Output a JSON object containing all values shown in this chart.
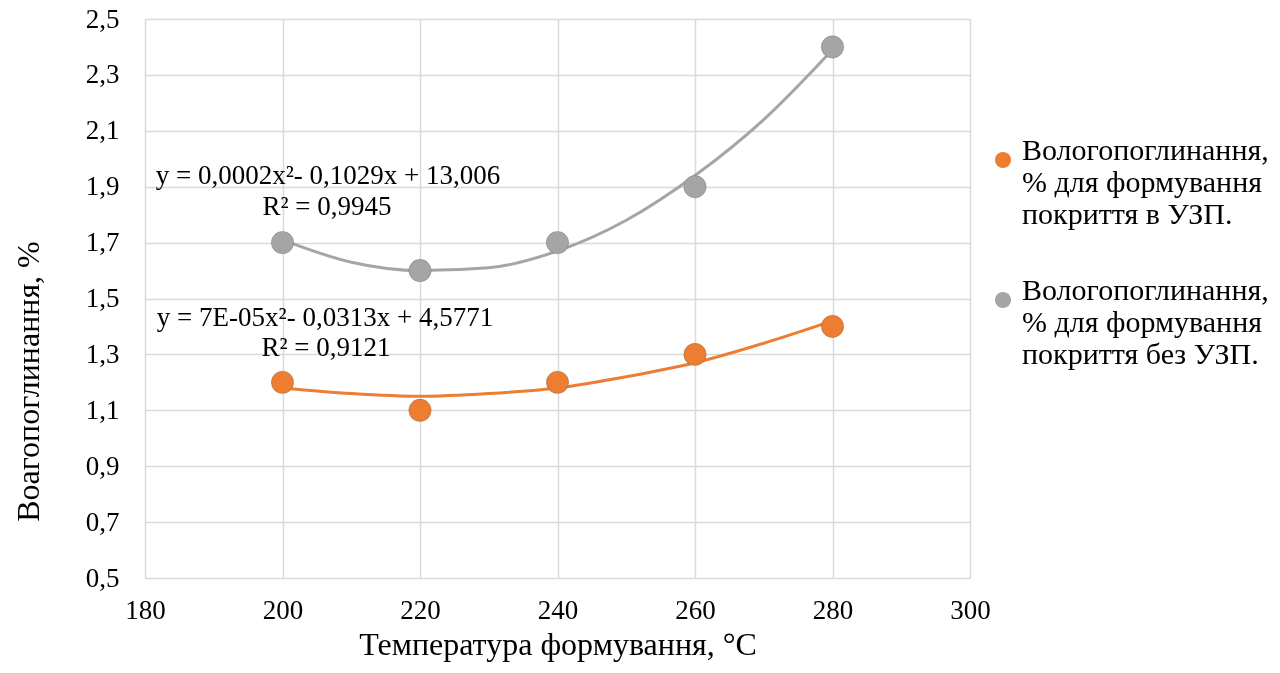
{
  "chart_data": {
    "type": "scatter",
    "xlabel": "Температура формування, °C",
    "ylabel": "Воагопоглинання, %",
    "xlim": [
      180,
      300
    ],
    "xticks": [
      180,
      200,
      220,
      240,
      260,
      280,
      300
    ],
    "ylim": [
      0.5,
      2.5
    ],
    "yticks": [
      {
        "value": 0.5,
        "label": "0,5"
      },
      {
        "value": 0.7,
        "label": "0,7"
      },
      {
        "value": 0.9,
        "label": "0,9"
      },
      {
        "value": 1.1,
        "label": "1,1"
      },
      {
        "value": 1.3,
        "label": "1,3"
      },
      {
        "value": 1.5,
        "label": "1,5"
      },
      {
        "value": 1.7,
        "label": "1,7"
      },
      {
        "value": 1.9,
        "label": "1,9"
      },
      {
        "value": 2.1,
        "label": "2,1"
      },
      {
        "value": 2.3,
        "label": "2,3"
      },
      {
        "value": 2.5,
        "label": "2,5"
      }
    ],
    "grid": true,
    "legend": "right",
    "marker": "circle",
    "series": [
      {
        "name": "Вологопоглинання, % для формування покриття в УЗП.",
        "color": "#ed7d31",
        "x": [
          200,
          220,
          240,
          260,
          280
        ],
        "values": [
          1.2,
          1.1,
          1.2,
          1.3,
          1.4
        ]
      },
      {
        "name": "Вологопоглинання, % для формування покриття без УЗП.",
        "color": "#a5a5a5",
        "x": [
          200,
          220,
          240,
          260,
          280
        ],
        "values": [
          1.7,
          1.6,
          1.7,
          1.9,
          2.4
        ]
      },
      {
        "type": "line",
        "marker": "none",
        "line_style": "solid",
        "color": "#ed7d31",
        "x": [
          200,
          210,
          220,
          230,
          240,
          250,
          260,
          270,
          280
        ],
        "values": [
          1.18,
          1.16,
          1.15,
          1.16,
          1.18,
          1.22,
          1.27,
          1.34,
          1.42
        ]
      },
      {
        "type": "line",
        "marker": "none",
        "line_style": "solid",
        "color": "#a5a5a5",
        "x": [
          200,
          210,
          220,
          230,
          240,
          250,
          260,
          270,
          280
        ],
        "values": [
          1.71,
          1.63,
          1.6,
          1.61,
          1.67,
          1.78,
          1.94,
          2.14,
          2.39
        ]
      }
    ],
    "annotations": [
      "y = 0,0002x²- 0,1029x + 13,006",
      "R² = 0,9945",
      "y = 7E-05x²- 0,0313x + 4,5771",
      "R² = 0,9121"
    ]
  }
}
